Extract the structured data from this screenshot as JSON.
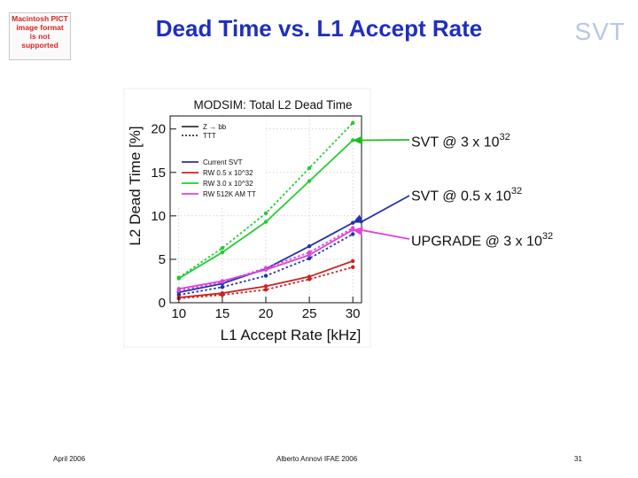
{
  "slide": {
    "title": "Dead Time vs. L1 Accept Rate",
    "brand": "SVT",
    "pict_placeholder": "Macintosh PICT\nimage format\nis not supported",
    "footer": {
      "left": "April 2006",
      "center": "Alberto Annovi IFAE 2006",
      "page": "31"
    }
  },
  "annotations": [
    {
      "base": "SVT @ 3 x 10",
      "exp": "32",
      "color": "#22bb22"
    },
    {
      "base": "SVT @ 0.5 x 10",
      "exp": "32",
      "color": "#2233aa"
    },
    {
      "base": "UPGRADE @ 3 x 10",
      "exp": "32",
      "color": "#dd44dd"
    }
  ],
  "chart_data": {
    "type": "line",
    "title": "MODSIM: Total L2 Dead Time",
    "xlabel": "L1 Accept Rate [kHz]",
    "ylabel": "L2 Dead Time [%]",
    "xlim": [
      9,
      31
    ],
    "ylim": [
      0,
      21.5
    ],
    "xticks": [
      10,
      15,
      20,
      25,
      30
    ],
    "yticks": [
      0,
      5,
      10,
      15,
      20
    ],
    "grid": true,
    "legend_position": "top-left",
    "legend_groups": [
      {
        "label": "Z → bb",
        "style": "solid",
        "color": "#111111"
      },
      {
        "label": "TTT",
        "style": "dotted",
        "color": "#111111"
      }
    ],
    "x": [
      10,
      15,
      20,
      25,
      30
    ],
    "series": [
      {
        "name": "Current SVT",
        "color": "#2233aa",
        "style": "solid",
        "values": [
          1.2,
          2.2,
          3.9,
          6.5,
          9.2
        ]
      },
      {
        "name": "Current SVT",
        "color": "#2233aa",
        "style": "dotted",
        "values": [
          0.9,
          1.8,
          3.1,
          5.1,
          7.9
        ]
      },
      {
        "name": "RW 0.5 x 10^32",
        "color": "#cc2222",
        "style": "solid",
        "values": [
          0.6,
          1.1,
          1.9,
          3.0,
          4.8
        ]
      },
      {
        "name": "RW 0.5 x 10^32",
        "color": "#cc2222",
        "style": "dotted",
        "values": [
          0.5,
          0.9,
          1.5,
          2.7,
          4.1
        ]
      },
      {
        "name": "RW 3.0 x 10^32",
        "color": "#22cc33",
        "style": "solid",
        "values": [
          2.8,
          5.8,
          9.3,
          14.0,
          18.7
        ]
      },
      {
        "name": "RW 3.0 x 10^32",
        "color": "#22cc33",
        "style": "dotted",
        "values": [
          2.9,
          6.3,
          10.3,
          15.5,
          20.7
        ]
      },
      {
        "name": "RW 512K AM TT",
        "color": "#dd44dd",
        "style": "solid",
        "values": [
          1.6,
          2.5,
          3.8,
          5.5,
          8.4
        ]
      },
      {
        "name": "RW 512K AM TT",
        "color": "#dd44dd",
        "style": "dotted",
        "values": [
          1.4,
          2.4,
          4.0,
          5.8,
          8.6
        ]
      }
    ],
    "legend_entries": [
      {
        "label": "Current SVT",
        "color": "#2233aa"
      },
      {
        "label": "RW 0.5 x 10^32",
        "color": "#cc2222"
      },
      {
        "label": "RW 3.0 x 10^32",
        "color": "#22cc33"
      },
      {
        "label": "RW 512K AM TT",
        "color": "#dd44dd"
      }
    ]
  }
}
